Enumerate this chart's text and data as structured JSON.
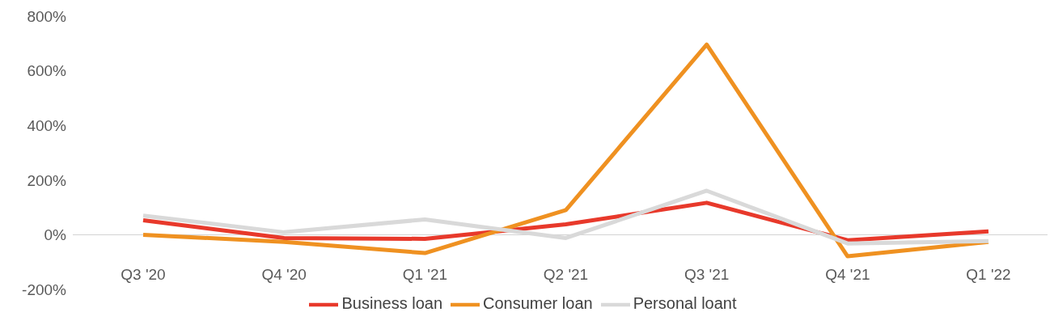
{
  "chart_data": {
    "type": "line",
    "categories": [
      "Q3 '20",
      "Q4 '20",
      "Q1 '21",
      "Q2 '21",
      "Q3 '21",
      "Q4 '21",
      "Q1 '22"
    ],
    "series": [
      {
        "name": "Business loan",
        "color": "#e8392b",
        "values": [
          53,
          -12,
          -15,
          38,
          117,
          -20,
          12
        ]
      },
      {
        "name": "Consumer loan",
        "color": "#ef9121",
        "values": [
          0,
          -26,
          -67,
          90,
          696,
          -79,
          -26
        ]
      },
      {
        "name": "Personal loant",
        "color": "#d9d9d9",
        "values": [
          70,
          9,
          56,
          -12,
          161,
          -32,
          -23
        ]
      }
    ],
    "ylim": [
      -200,
      800
    ],
    "yticks": [
      {
        "value": -200,
        "label": "-200%"
      },
      {
        "value": 0,
        "label": "0%"
      },
      {
        "value": 200,
        "label": "200%"
      },
      {
        "value": 400,
        "label": "400%"
      },
      {
        "value": 600,
        "label": "600%"
      },
      {
        "value": 800,
        "label": "800%"
      }
    ],
    "legend": "bottom",
    "marker": "none",
    "line_style": "solid"
  }
}
